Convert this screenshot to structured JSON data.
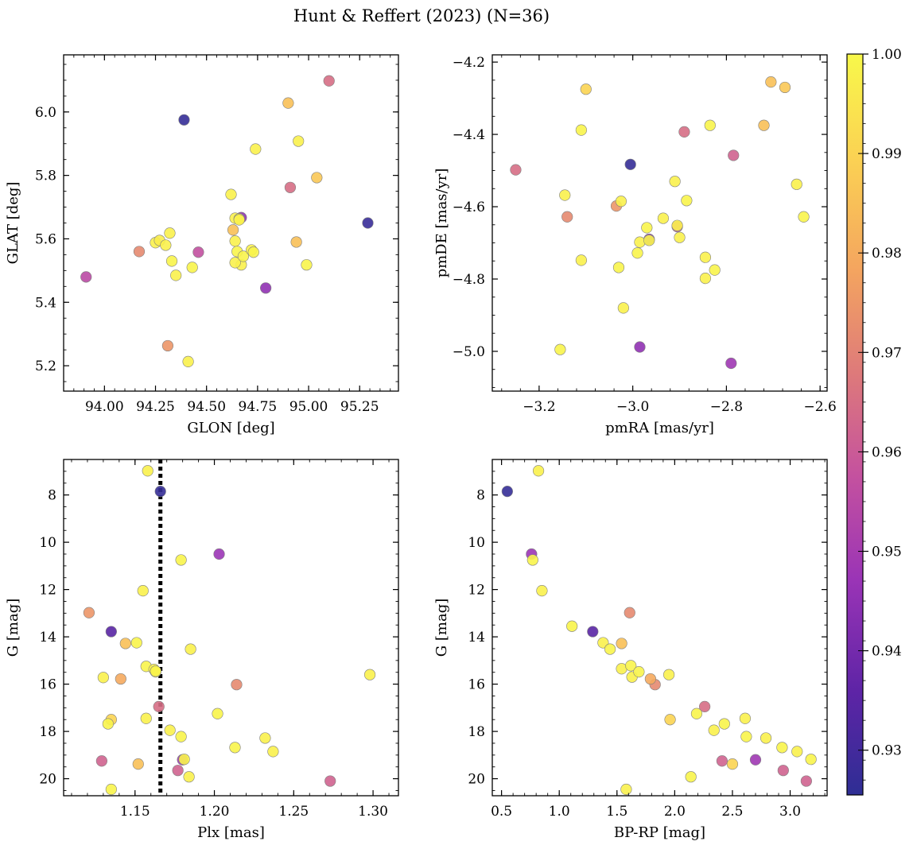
{
  "figure": {
    "title": "Hunt & Reffert (2023) (N=36)"
  },
  "chart_data": [
    {
      "type": "scatter",
      "panel": "top-left",
      "xlabel": "GLON [deg]",
      "ylabel": "GLAT [deg]",
      "xlim": [
        93.8,
        95.44
      ],
      "ylim": [
        5.12,
        6.18
      ],
      "y_inverted": false,
      "xticks": [
        94.0,
        94.25,
        94.5,
        94.75,
        95.0,
        95.25
      ],
      "xtick_labels": [
        "94.00",
        "94.25",
        "94.50",
        "94.75",
        "95.00",
        "95.25"
      ],
      "yticks": [
        5.2,
        5.4,
        5.6,
        5.8,
        6.0
      ],
      "ytick_labels": [
        "5.2",
        "5.4",
        "5.6",
        "5.8",
        "6.0"
      ],
      "x": [
        94.39,
        95.29,
        94.79,
        93.91,
        94.17,
        94.46,
        94.67,
        95.1,
        94.9,
        94.91,
        95.04,
        94.94,
        94.63,
        94.31,
        94.41,
        94.25,
        94.27,
        94.3,
        94.32,
        94.33,
        94.35,
        94.43,
        94.62,
        94.64,
        94.66,
        94.64,
        94.65,
        94.67,
        94.64,
        94.68,
        94.72,
        94.73,
        94.74,
        94.95,
        94.99,
        94.66
      ],
      "y": [
        5.975,
        5.65,
        5.445,
        5.48,
        5.56,
        5.558,
        5.667,
        6.098,
        6.028,
        5.762,
        5.793,
        5.59,
        5.628,
        5.263,
        5.213,
        5.588,
        5.595,
        5.58,
        5.618,
        5.53,
        5.485,
        5.51,
        5.74,
        5.665,
        5.663,
        5.593,
        5.56,
        5.518,
        5.525,
        5.545,
        5.565,
        5.558,
        5.883,
        5.908,
        5.518,
        5.66
      ],
      "colors": [
        0.927,
        0.928,
        0.945,
        0.955,
        0.972,
        0.957,
        0.945,
        0.965,
        0.985,
        0.965,
        0.987,
        0.985,
        0.985,
        0.975,
        0.998,
        0.998,
        0.997,
        0.998,
        0.998,
        0.999,
        0.998,
        0.999,
        0.998,
        0.998,
        0.999,
        0.998,
        0.999,
        0.998,
        0.998,
        0.999,
        0.998,
        0.999,
        0.998,
        0.998,
        0.999,
        0.998
      ]
    },
    {
      "type": "scatter",
      "panel": "top-right",
      "xlabel": "pmRA [mas/yr]",
      "ylabel": "pmDE [mas/yr]",
      "xlim": [
        -3.3,
        -2.585
      ],
      "ylim": [
        -5.11,
        -4.18
      ],
      "y_inverted": false,
      "xticks": [
        -3.2,
        -3.0,
        -2.8,
        -2.6
      ],
      "xtick_labels": [
        "−3.2",
        "−3.0",
        "−2.8",
        "−2.6"
      ],
      "yticks": [
        -5.0,
        -4.8,
        -4.6,
        -4.4,
        -4.2
      ],
      "ytick_labels": [
        "−5.0",
        "−4.8",
        "−4.6",
        "−4.4",
        "−4.2"
      ],
      "x": [
        -3.005,
        -2.985,
        -2.79,
        -2.965,
        -2.905,
        -3.25,
        -3.14,
        -3.035,
        -2.89,
        -2.785,
        -2.705,
        -2.675,
        -2.72,
        -3.1,
        -3.11,
        -3.145,
        -3.025,
        -2.91,
        -2.885,
        -2.935,
        -2.97,
        -2.985,
        -2.965,
        -2.9,
        -2.99,
        -2.845,
        -2.825,
        -2.845,
        -3.03,
        -3.02,
        -3.155,
        -3.11,
        -2.835,
        -2.65,
        -2.635,
        -2.905
      ],
      "y": [
        -4.483,
        -4.988,
        -5.033,
        -4.69,
        -4.655,
        -4.498,
        -4.628,
        -4.598,
        -4.393,
        -4.458,
        -4.255,
        -4.27,
        -4.375,
        -4.275,
        -4.388,
        -4.568,
        -4.585,
        -4.53,
        -4.583,
        -4.632,
        -4.658,
        -4.698,
        -4.693,
        -4.685,
        -4.728,
        -4.74,
        -4.775,
        -4.798,
        -4.768,
        -4.88,
        -4.995,
        -4.748,
        -4.375,
        -4.538,
        -4.628,
        -4.652
      ],
      "colors": [
        0.927,
        0.945,
        0.948,
        0.945,
        0.96,
        0.965,
        0.972,
        0.975,
        0.965,
        0.962,
        0.985,
        0.987,
        0.985,
        0.99,
        0.999,
        0.998,
        0.998,
        0.998,
        0.999,
        0.998,
        0.999,
        0.998,
        0.999,
        0.998,
        0.999,
        0.998,
        0.999,
        0.998,
        0.999,
        0.998,
        0.999,
        0.998,
        0.999,
        0.998,
        0.999,
        0.998
      ]
    },
    {
      "type": "scatter",
      "panel": "bottom-left",
      "xlabel": "Plx [mas]",
      "ylabel": "G [mag]",
      "xlim": [
        1.105,
        1.316
      ],
      "ylim": [
        20.72,
        6.5
      ],
      "y_inverted": true,
      "vline": {
        "x": 1.166,
        "style": "dotted",
        "color": "#000000"
      },
      "xticks": [
        1.15,
        1.2,
        1.25,
        1.3
      ],
      "xtick_labels": [
        "1.15",
        "1.20",
        "1.25",
        "1.30"
      ],
      "yticks": [
        8,
        10,
        12,
        14,
        16,
        18,
        20
      ],
      "ytick_labels": [
        "8",
        "10",
        "12",
        "14",
        "16",
        "18",
        "20"
      ],
      "x": [
        1.166,
        1.135,
        1.203,
        1.18,
        1.121,
        1.129,
        1.273,
        1.165,
        1.177,
        1.214,
        1.144,
        1.152,
        1.141,
        1.135,
        1.158,
        1.179,
        1.155,
        1.151,
        1.185,
        1.157,
        1.162,
        1.163,
        1.13,
        1.202,
        1.157,
        1.133,
        1.172,
        1.179,
        1.232,
        1.213,
        1.237,
        1.181,
        1.184,
        1.135,
        1.298,
        1.163
      ],
      "y": [
        7.85,
        13.78,
        10.5,
        19.2,
        12.98,
        19.25,
        20.1,
        16.95,
        19.65,
        16.02,
        14.28,
        19.38,
        15.78,
        17.5,
        6.98,
        10.75,
        12.05,
        14.25,
        14.52,
        15.25,
        15.38,
        15.48,
        15.72,
        17.25,
        17.45,
        17.68,
        17.95,
        18.22,
        18.28,
        18.68,
        18.85,
        19.18,
        19.92,
        20.45,
        15.6,
        15.45
      ],
      "colors": [
        0.927,
        0.935,
        0.947,
        0.948,
        0.975,
        0.962,
        0.962,
        0.965,
        0.962,
        0.972,
        0.985,
        0.985,
        0.98,
        0.99,
        0.998,
        0.999,
        0.998,
        0.999,
        0.998,
        0.999,
        0.998,
        0.999,
        0.998,
        0.999,
        0.998,
        0.999,
        0.998,
        0.999,
        0.998,
        0.999,
        0.998,
        0.999,
        0.998,
        0.999,
        0.998,
        0.999
      ]
    },
    {
      "type": "scatter",
      "panel": "bottom-right",
      "xlabel": "BP-RP [mag]",
      "ylabel": "G [mag]",
      "xlim": [
        0.42,
        3.32
      ],
      "ylim": [
        20.72,
        6.5
      ],
      "y_inverted": true,
      "xticks": [
        0.5,
        1.0,
        1.5,
        2.0,
        2.5,
        3.0
      ],
      "xtick_labels": [
        "0.5",
        "1.0",
        "1.5",
        "2.0",
        "2.5",
        "3.0"
      ],
      "yticks": [
        8,
        10,
        12,
        14,
        16,
        18,
        20
      ],
      "ytick_labels": [
        "8",
        "10",
        "12",
        "14",
        "16",
        "18",
        "20"
      ],
      "x": [
        0.55,
        1.29,
        0.76,
        2.7,
        1.61,
        1.83,
        2.26,
        2.41,
        2.94,
        3.14,
        1.54,
        1.79,
        1.96,
        2.5,
        0.82,
        0.77,
        0.85,
        1.11,
        1.38,
        1.44,
        1.54,
        1.62,
        1.63,
        1.69,
        1.95,
        2.19,
        2.34,
        2.43,
        2.61,
        2.62,
        2.79,
        2.93,
        3.06,
        3.18,
        1.58,
        2.14
      ],
      "y": [
        7.85,
        13.78,
        10.5,
        19.2,
        12.98,
        16.02,
        16.95,
        19.25,
        19.65,
        20.1,
        14.28,
        15.78,
        17.5,
        19.38,
        6.98,
        10.75,
        12.05,
        13.55,
        14.25,
        14.52,
        15.35,
        15.22,
        15.7,
        15.48,
        15.6,
        17.25,
        17.95,
        17.68,
        17.45,
        18.22,
        18.28,
        18.68,
        18.85,
        19.18,
        20.45,
        19.92
      ],
      "colors": [
        0.927,
        0.935,
        0.947,
        0.948,
        0.972,
        0.972,
        0.965,
        0.962,
        0.962,
        0.962,
        0.985,
        0.98,
        0.99,
        0.99,
        0.998,
        0.999,
        0.998,
        0.999,
        0.998,
        0.999,
        0.998,
        0.999,
        0.998,
        0.999,
        0.998,
        0.999,
        0.998,
        0.999,
        0.998,
        0.999,
        0.998,
        0.999,
        0.998,
        0.999,
        0.998,
        0.999
      ]
    }
  ],
  "colorbar": {
    "cmap": "plasma",
    "range": [
      0.9255,
      1.0
    ],
    "ticks": [
      0.93,
      0.94,
      0.95,
      0.96,
      0.97,
      0.98,
      0.99,
      1.0
    ],
    "tick_labels": [
      "0.93",
      "0.94",
      "0.95",
      "0.96",
      "0.97",
      "0.98",
      "0.99",
      "1.00"
    ],
    "colors": [
      "#2e2e94",
      "#5e24a6",
      "#9a34b6",
      "#c4519f",
      "#de7a7a",
      "#f4a55f",
      "#fbd253",
      "#f8f84a"
    ]
  }
}
